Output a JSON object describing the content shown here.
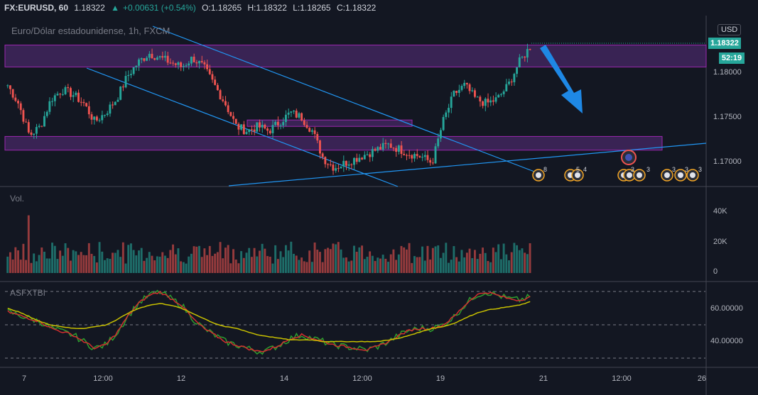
{
  "header": {
    "symbol": "FX:EURUSD, 60",
    "last": "1.18322",
    "change": "+0.00631 (+0.54%)",
    "open": "O:1.18265",
    "high": "H:1.18322",
    "low": "L:1.18265",
    "close": "C:1.18322",
    "change_arrow": "▲"
  },
  "chart_title": "Euro/Dólar estadounidense, 1h, FXCM",
  "currency": "USD",
  "price_tag": "1.18322",
  "time_tag": "52:19",
  "price_axis": [
    "1.18000",
    "1.17500",
    "1.17000"
  ],
  "volume_axis": [
    "40K",
    "20K",
    "0"
  ],
  "osc_axis": [
    "60.00000",
    "40.00000"
  ],
  "time_axis": [
    "7",
    "12:00",
    "12",
    "14",
    "12:00",
    "19",
    "21",
    "12:00",
    "26"
  ],
  "volume_label": "Vol.",
  "osc_label": "ASFXTBI",
  "events": [
    "8",
    "5",
    "4",
    "3",
    "3",
    "3",
    "3",
    "3"
  ],
  "colors": {
    "up": "#26a69a",
    "down": "#ef5350",
    "zone": "#4a2a6a",
    "trendline": "#2196f3",
    "osc_green": "#2e9d2e",
    "osc_red": "#d32f2f",
    "osc_yellow": "#c8c000"
  },
  "chart_data": {
    "type": "candlestick",
    "price_range": [
      1.168,
      1.186
    ],
    "volume_range": [
      0,
      45000
    ],
    "osc_range": [
      30,
      75
    ],
    "price_waypoints": [
      1.179,
      1.177,
      1.1735,
      1.1745,
      1.1775,
      1.1785,
      1.178,
      1.177,
      1.175,
      1.176,
      1.1775,
      1.18,
      1.1815,
      1.1825,
      1.182,
      1.1815,
      1.181,
      1.182,
      1.181,
      1.179,
      1.177,
      1.1745,
      1.174,
      1.1745,
      1.174,
      1.175,
      1.176,
      1.1755,
      1.174,
      1.171,
      1.17,
      1.1705,
      1.171,
      1.1715,
      1.172,
      1.1725,
      1.172,
      1.1715,
      1.1712,
      1.1705,
      1.175,
      1.178,
      1.179,
      1.1775,
      1.177,
      1.1775,
      1.179,
      1.1815,
      1.1832
    ],
    "zones": [
      {
        "low": 1.181,
        "high": 1.1834
      },
      {
        "low": 1.1745,
        "high": 1.1752
      },
      {
        "low": 1.1719,
        "high": 1.1734
      }
    ]
  }
}
